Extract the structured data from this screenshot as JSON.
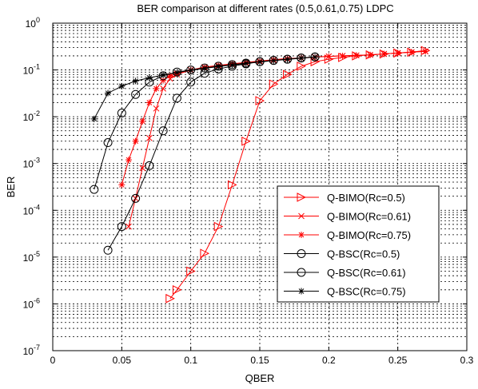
{
  "chart_data": {
    "type": "line",
    "title": "BER comparison at different rates (0.5,0.61,0.75) LDPC",
    "xlabel": "QBER",
    "ylabel": "BER",
    "xlim": [
      0,
      0.3
    ],
    "ylim": [
      1e-07,
      1
    ],
    "yscale": "log",
    "grid": true,
    "legend_position": "lower-right",
    "x_ticks": [
      "0",
      "0.05",
      "0.1",
      "0.15",
      "0.2",
      "0.25",
      "0.3"
    ],
    "y_ticks": [
      {
        "base": "10",
        "exp": "0"
      },
      {
        "base": "10",
        "exp": "-1"
      },
      {
        "base": "10",
        "exp": "-2"
      },
      {
        "base": "10",
        "exp": "-3"
      },
      {
        "base": "10",
        "exp": "-4"
      },
      {
        "base": "10",
        "exp": "-5"
      },
      {
        "base": "10",
        "exp": "-6"
      },
      {
        "base": "10",
        "exp": "-7"
      }
    ],
    "series": [
      {
        "name": "Q-BIMO(Rc=0.5)",
        "color": "#ff0000",
        "marker": "triangle-right",
        "x": [
          0.085,
          0.09,
          0.1,
          0.11,
          0.12,
          0.13,
          0.14,
          0.15,
          0.16,
          0.17,
          0.18,
          0.19,
          0.2,
          0.21,
          0.22,
          0.23,
          0.24,
          0.25,
          0.26,
          0.27
        ],
        "y": [
          1.3e-06,
          2e-06,
          5e-06,
          1.2e-05,
          4.5e-05,
          0.00035,
          0.003,
          0.022,
          0.05,
          0.08,
          0.12,
          0.15,
          0.17,
          0.185,
          0.2,
          0.21,
          0.22,
          0.23,
          0.24,
          0.26
        ]
      },
      {
        "name": "Q-BIMO(Rc=0.61)",
        "color": "#ff0000",
        "marker": "x",
        "x": [
          0.055,
          0.06,
          0.065,
          0.07,
          0.075,
          0.08,
          0.085,
          0.09,
          0.1,
          0.11,
          0.12,
          0.13,
          0.14,
          0.15,
          0.16,
          0.17,
          0.18,
          0.19,
          0.2,
          0.21,
          0.22,
          0.23,
          0.24,
          0.25,
          0.26,
          0.27
        ],
        "y": [
          4.5e-05,
          0.00018,
          0.0008,
          0.0035,
          0.015,
          0.04,
          0.065,
          0.08,
          0.1,
          0.115,
          0.125,
          0.135,
          0.145,
          0.155,
          0.165,
          0.175,
          0.18,
          0.19,
          0.195,
          0.2,
          0.205,
          0.21,
          0.22,
          0.23,
          0.24,
          0.25
        ]
      },
      {
        "name": "Q-BIMO(Rc=0.75)",
        "color": "#ff0000",
        "marker": "asterisk",
        "x": [
          0.05,
          0.055,
          0.06,
          0.065,
          0.07,
          0.075,
          0.08,
          0.085,
          0.09,
          0.1,
          0.11,
          0.12,
          0.13,
          0.14,
          0.15,
          0.16,
          0.17,
          0.18,
          0.19,
          0.2,
          0.21,
          0.22,
          0.23,
          0.24,
          0.25,
          0.26,
          0.27
        ],
        "y": [
          0.00035,
          0.0012,
          0.003,
          0.008,
          0.02,
          0.04,
          0.06,
          0.075,
          0.085,
          0.1,
          0.112,
          0.122,
          0.132,
          0.142,
          0.152,
          0.162,
          0.172,
          0.18,
          0.188,
          0.195,
          0.2,
          0.205,
          0.21,
          0.22,
          0.23,
          0.24,
          0.25
        ]
      },
      {
        "name": "Q-BSC(Rc=0.5)",
        "color": "#000000",
        "marker": "circle",
        "x": [
          0.04,
          0.05,
          0.06,
          0.07,
          0.08,
          0.09,
          0.1,
          0.11,
          0.12,
          0.13,
          0.14,
          0.15,
          0.16,
          0.17,
          0.18,
          0.19
        ],
        "y": [
          1.4e-05,
          4.5e-05,
          0.00018,
          0.0009,
          0.005,
          0.025,
          0.055,
          0.085,
          0.105,
          0.12,
          0.135,
          0.15,
          0.16,
          0.17,
          0.18,
          0.19
        ]
      },
      {
        "name": "Q-BSC(Rc=0.61)",
        "color": "#000000",
        "marker": "circle",
        "x": [
          0.03,
          0.04,
          0.05,
          0.06,
          0.07,
          0.08,
          0.09,
          0.1,
          0.11,
          0.12,
          0.13,
          0.14,
          0.15,
          0.16,
          0.17,
          0.18,
          0.19
        ],
        "y": [
          0.00028,
          0.0028,
          0.012,
          0.03,
          0.055,
          0.075,
          0.09,
          0.1,
          0.11,
          0.12,
          0.13,
          0.14,
          0.15,
          0.16,
          0.17,
          0.18,
          0.19
        ]
      },
      {
        "name": "Q-BSC(Rc=0.75)",
        "color": "#000000",
        "marker": "asterisk",
        "x": [
          0.03,
          0.04,
          0.05,
          0.06,
          0.07,
          0.08,
          0.09,
          0.1,
          0.11,
          0.12,
          0.13,
          0.14,
          0.15,
          0.16,
          0.17,
          0.18,
          0.19
        ],
        "y": [
          0.009,
          0.032,
          0.045,
          0.058,
          0.068,
          0.078,
          0.088,
          0.098,
          0.108,
          0.118,
          0.128,
          0.138,
          0.148,
          0.158,
          0.168,
          0.178,
          0.188
        ]
      }
    ]
  }
}
